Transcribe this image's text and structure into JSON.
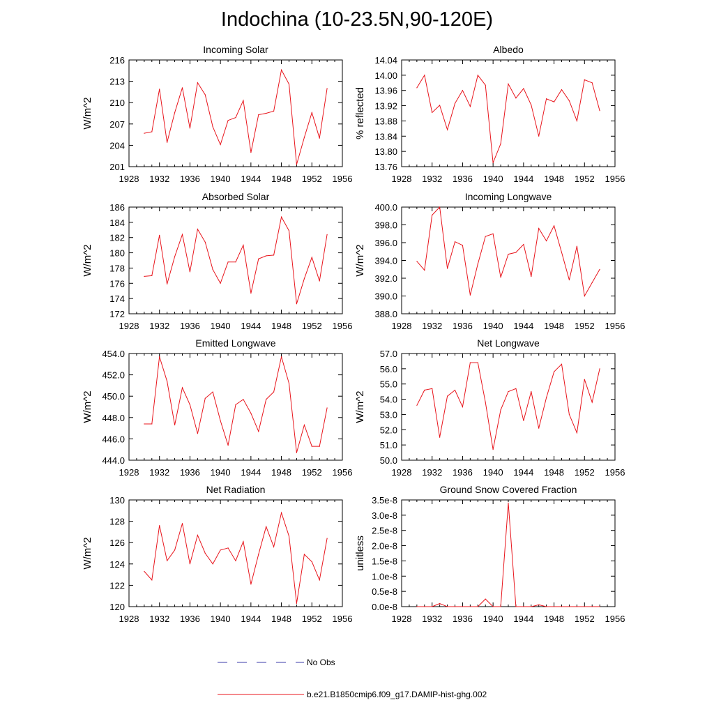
{
  "page": {
    "title": "Indochina (10-23.5N,90-120E)"
  },
  "colors": {
    "series": "#e8141b",
    "no_obs": "#3a3aa8",
    "axis": "#000000"
  },
  "legend": {
    "items": [
      {
        "label": "No Obs",
        "style": "dashed",
        "color": "#3a3aa8"
      },
      {
        "label": "b.e21.B1850cmip6.f09_g17.DAMIP-hist-ghg.002",
        "style": "solid",
        "color": "#e8141b"
      }
    ]
  },
  "chart_data": [
    {
      "type": "line",
      "title": "Incoming Solar",
      "ylabel": "W/m^2",
      "xlim": [
        1928,
        1956
      ],
      "ylim": [
        201,
        216
      ],
      "xticks": [
        "1928",
        "1932",
        "1936",
        "1940",
        "1944",
        "1948",
        "1952",
        "1956"
      ],
      "yticks": [
        "201",
        "204",
        "207",
        "210",
        "213",
        "216"
      ],
      "x": [
        1930,
        1931,
        1932,
        1933,
        1934,
        1935,
        1936,
        1937,
        1938,
        1939,
        1940,
        1941,
        1942,
        1943,
        1944,
        1945,
        1946,
        1947,
        1948,
        1949,
        1950,
        1951,
        1952,
        1953,
        1954
      ],
      "values": [
        205.7,
        205.9,
        211.9,
        204.4,
        208.6,
        212.1,
        206.4,
        212.8,
        211.1,
        206.6,
        204.1,
        207.5,
        207.9,
        210.3,
        203.0,
        208.3,
        208.5,
        208.8,
        214.6,
        212.6,
        201.3,
        205.1,
        208.6,
        205.0,
        212.0
      ]
    },
    {
      "type": "line",
      "title": "Albedo",
      "ylabel": "% reflected",
      "xlim": [
        1928,
        1956
      ],
      "ylim": [
        13.76,
        14.04
      ],
      "xticks": [
        "1928",
        "1932",
        "1936",
        "1940",
        "1944",
        "1948",
        "1952",
        "1956"
      ],
      "yticks": [
        "13.76",
        "13.80",
        "13.84",
        "13.88",
        "13.92",
        "13.96",
        "14.00",
        "14.04"
      ],
      "x": [
        1930,
        1931,
        1932,
        1933,
        1934,
        1935,
        1936,
        1937,
        1938,
        1939,
        1940,
        1941,
        1942,
        1943,
        1944,
        1945,
        1946,
        1947,
        1948,
        1949,
        1950,
        1951,
        1952,
        1953,
        1954
      ],
      "values": [
        13.967,
        14.0,
        13.902,
        13.921,
        13.857,
        13.926,
        13.96,
        13.918,
        14.0,
        13.974,
        13.77,
        13.82,
        13.977,
        13.94,
        13.965,
        13.922,
        13.84,
        13.938,
        13.93,
        13.962,
        13.933,
        13.88,
        13.988,
        13.98,
        13.907
      ]
    },
    {
      "type": "line",
      "title": "Absorbed Solar",
      "ylabel": "W/m^2",
      "xlim": [
        1928,
        1956
      ],
      "ylim": [
        172,
        186
      ],
      "xticks": [
        "1928",
        "1932",
        "1936",
        "1940",
        "1944",
        "1948",
        "1952",
        "1956"
      ],
      "yticks": [
        "172",
        "174",
        "176",
        "178",
        "180",
        "182",
        "184",
        "186"
      ],
      "x": [
        1930,
        1931,
        1932,
        1933,
        1934,
        1935,
        1936,
        1937,
        1938,
        1939,
        1940,
        1941,
        1942,
        1943,
        1944,
        1945,
        1946,
        1947,
        1948,
        1949,
        1950,
        1951,
        1952,
        1953,
        1954
      ],
      "values": [
        176.9,
        177.0,
        182.3,
        175.9,
        179.5,
        182.4,
        177.5,
        183.1,
        181.4,
        177.8,
        176.0,
        178.8,
        178.8,
        181.0,
        174.7,
        179.2,
        179.6,
        179.7,
        184.7,
        182.9,
        173.3,
        176.6,
        179.4,
        176.3,
        182.4
      ]
    },
    {
      "type": "line",
      "title": "Incoming Longwave",
      "ylabel": "W/m^2",
      "xlim": [
        1928,
        1956
      ],
      "ylim": [
        388.0,
        400.0
      ],
      "xticks": [
        "1928",
        "1932",
        "1936",
        "1940",
        "1944",
        "1948",
        "1952",
        "1956"
      ],
      "yticks": [
        "388.0",
        "390.0",
        "392.0",
        "394.0",
        "396.0",
        "398.0",
        "400.0"
      ],
      "x": [
        1930,
        1931,
        1932,
        1933,
        1934,
        1935,
        1936,
        1937,
        1938,
        1939,
        1940,
        1941,
        1942,
        1943,
        1944,
        1945,
        1946,
        1947,
        1948,
        1949,
        1950,
        1951,
        1952,
        1953,
        1954
      ],
      "values": [
        393.9,
        392.9,
        399.1,
        400.0,
        393.1,
        396.1,
        395.7,
        390.1,
        393.6,
        396.7,
        397.0,
        392.1,
        394.7,
        394.9,
        395.8,
        392.2,
        397.6,
        396.2,
        397.9,
        394.9,
        391.8,
        395.6,
        390.0,
        391.5,
        393.0
      ]
    },
    {
      "type": "line",
      "title": "Emitted Longwave",
      "ylabel": "W/m^2",
      "xlim": [
        1928,
        1956
      ],
      "ylim": [
        444.0,
        454.0
      ],
      "xticks": [
        "1928",
        "1932",
        "1936",
        "1940",
        "1944",
        "1948",
        "1952",
        "1956"
      ],
      "yticks": [
        "444.0",
        "446.0",
        "448.0",
        "450.0",
        "452.0",
        "454.0"
      ],
      "x": [
        1930,
        1931,
        1932,
        1933,
        1934,
        1935,
        1936,
        1937,
        1938,
        1939,
        1940,
        1941,
        1942,
        1943,
        1944,
        1945,
        1946,
        1947,
        1948,
        1949,
        1950,
        1951,
        1952,
        1953,
        1954
      ],
      "values": [
        447.4,
        447.4,
        453.7,
        451.4,
        447.3,
        450.8,
        449.2,
        446.5,
        449.8,
        450.4,
        447.7,
        445.4,
        449.2,
        449.7,
        448.4,
        446.7,
        449.7,
        450.4,
        453.7,
        451.2,
        444.7,
        447.3,
        445.3,
        445.3,
        448.9
      ]
    },
    {
      "type": "line",
      "title": "Net Longwave",
      "ylabel": "W/m^2",
      "xlim": [
        1928,
        1956
      ],
      "ylim": [
        50.0,
        57.0
      ],
      "xticks": [
        "1928",
        "1932",
        "1936",
        "1940",
        "1944",
        "1948",
        "1952",
        "1956"
      ],
      "yticks": [
        "50.0",
        "51.0",
        "52.0",
        "53.0",
        "54.0",
        "55.0",
        "56.0",
        "57.0"
      ],
      "x": [
        1930,
        1931,
        1932,
        1933,
        1934,
        1935,
        1936,
        1937,
        1938,
        1939,
        1940,
        1941,
        1942,
        1943,
        1944,
        1945,
        1946,
        1947,
        1948,
        1949,
        1950,
        1951,
        1952,
        1953,
        1954
      ],
      "values": [
        53.6,
        54.6,
        54.7,
        51.5,
        54.2,
        54.6,
        53.5,
        56.4,
        56.4,
        53.8,
        50.7,
        53.3,
        54.5,
        54.7,
        52.6,
        54.5,
        52.1,
        54.1,
        55.8,
        56.3,
        53.0,
        51.8,
        55.3,
        53.8,
        56.0
      ]
    },
    {
      "type": "line",
      "title": "Net Radiation",
      "ylabel": "W/m^2",
      "xlim": [
        1928,
        1956
      ],
      "ylim": [
        120,
        130
      ],
      "xticks": [
        "1928",
        "1932",
        "1936",
        "1940",
        "1944",
        "1948",
        "1952",
        "1956"
      ],
      "yticks": [
        "120",
        "122",
        "124",
        "126",
        "128",
        "130"
      ],
      "x": [
        1930,
        1931,
        1932,
        1933,
        1934,
        1935,
        1936,
        1937,
        1938,
        1939,
        1940,
        1941,
        1942,
        1943,
        1944,
        1945,
        1946,
        1947,
        1948,
        1949,
        1950,
        1951,
        1952,
        1953,
        1954
      ],
      "values": [
        123.3,
        122.5,
        127.6,
        124.3,
        125.3,
        127.8,
        124.0,
        126.7,
        125.0,
        124.0,
        125.3,
        125.5,
        124.3,
        126.1,
        122.1,
        124.9,
        127.5,
        125.6,
        128.8,
        126.6,
        120.3,
        124.9,
        124.2,
        122.5,
        126.4
      ]
    },
    {
      "type": "line",
      "title": "Ground Snow Covered Fraction",
      "ylabel": "unitless",
      "xlim": [
        1928,
        1956
      ],
      "ylim": [
        0,
        3.5e-08
      ],
      "xticks": [
        "1928",
        "1932",
        "1936",
        "1940",
        "1944",
        "1948",
        "1952",
        "1956"
      ],
      "yticks": [
        "0.0e-8",
        "0.5e-8",
        "1.0e-8",
        "1.5e-8",
        "2.0e-8",
        "2.5e-8",
        "3.0e-8",
        "3.5e-8"
      ],
      "x": [
        1930,
        1931,
        1932,
        1933,
        1934,
        1935,
        1936,
        1937,
        1938,
        1939,
        1940,
        1941,
        1942,
        1943,
        1944,
        1945,
        1946,
        1947,
        1948,
        1949,
        1950,
        1951,
        1952,
        1953,
        1954
      ],
      "values": [
        0,
        0,
        0,
        1e-09,
        0,
        0,
        0,
        0,
        0,
        2.5e-09,
        0,
        0,
        3.4e-08,
        0,
        0,
        0,
        6e-10,
        0,
        0,
        0,
        0,
        0,
        0,
        0,
        0
      ]
    }
  ]
}
